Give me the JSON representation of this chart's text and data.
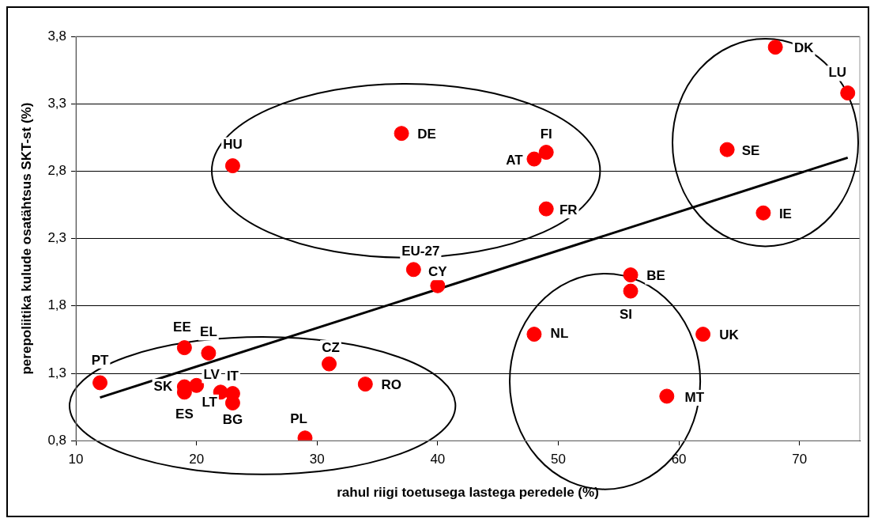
{
  "chart_data": {
    "type": "scatter",
    "xlabel": "rahul riigi toetusega lastega peredele (%)",
    "ylabel": "perepoliitika kulude osatähtsus SKT-st (%)",
    "series": [
      {
        "color": "#ff0000",
        "marker": "circle",
        "x": [
          12,
          19,
          21,
          19,
          19,
          20,
          22,
          23,
          23,
          23,
          29,
          31,
          34,
          37,
          49,
          48,
          49,
          38,
          40,
          56,
          56,
          48,
          62,
          59,
          68,
          74,
          64,
          67
        ],
        "values": [
          1.23,
          1.49,
          1.45,
          1.2,
          1.16,
          1.21,
          1.16,
          1.15,
          1.08,
          2.84,
          0.82,
          1.37,
          1.22,
          3.08,
          2.94,
          2.89,
          2.52,
          2.07,
          1.95,
          2.03,
          1.91,
          1.59,
          1.59,
          1.13,
          3.72,
          3.38,
          2.96,
          2.49
        ]
      },
      {
        "type": "line",
        "color": "#000000",
        "marker": "none",
        "x": [
          12,
          74
        ],
        "values": [
          1.12,
          2.9
        ]
      }
    ],
    "xlim": [
      10,
      75
    ],
    "ylim": [
      0.8,
      3.8
    ],
    "xticks": [
      10,
      20,
      30,
      40,
      50,
      60,
      70
    ],
    "yticks": [
      {
        "value": 0.8,
        "label": "0,8"
      },
      {
        "value": 1.3,
        "label": "1,3"
      },
      {
        "value": 1.8,
        "label": "1,8"
      },
      {
        "value": 2.3,
        "label": "2,3"
      },
      {
        "value": 2.8,
        "label": "2,8"
      },
      {
        "value": 3.3,
        "label": "3,3"
      },
      {
        "value": 3.8,
        "label": "3,8"
      }
    ],
    "grid": "y",
    "legend": false,
    "annotations": [
      {
        "text": "PT",
        "x": 12,
        "y": 1.23
      },
      {
        "text": "EE",
        "x": 19,
        "y": 1.49
      },
      {
        "text": "EL",
        "x": 21,
        "y": 1.45
      },
      {
        "text": "SK",
        "x": 19,
        "y": 1.2
      },
      {
        "text": "ES",
        "x": 19,
        "y": 1.16
      },
      {
        "text": "LV",
        "x": 20,
        "y": 1.21
      },
      {
        "text": "LT",
        "x": 22,
        "y": 1.16
      },
      {
        "text": "IT",
        "x": 23,
        "y": 1.15
      },
      {
        "text": "BG",
        "x": 23,
        "y": 1.08
      },
      {
        "text": "HU",
        "x": 23,
        "y": 2.84
      },
      {
        "text": "PL",
        "x": 29,
        "y": 0.82
      },
      {
        "text": "CZ",
        "x": 31,
        "y": 1.37
      },
      {
        "text": "RO",
        "x": 34,
        "y": 1.22
      },
      {
        "text": "DE",
        "x": 37,
        "y": 3.08
      },
      {
        "text": "FI",
        "x": 49,
        "y": 2.94
      },
      {
        "text": "AT",
        "x": 48,
        "y": 2.89
      },
      {
        "text": "FR",
        "x": 49,
        "y": 2.52
      },
      {
        "text": "EU-27",
        "x": 38,
        "y": 2.07
      },
      {
        "text": "CY",
        "x": 40,
        "y": 1.95
      },
      {
        "text": "BE",
        "x": 56,
        "y": 2.03
      },
      {
        "text": "SI",
        "x": 56,
        "y": 1.91
      },
      {
        "text": "NL",
        "x": 48,
        "y": 1.59
      },
      {
        "text": "UK",
        "x": 62,
        "y": 1.59
      },
      {
        "text": "MT",
        "x": 59,
        "y": 1.13
      },
      {
        "text": "DK",
        "x": 68,
        "y": 3.72
      },
      {
        "text": "LU",
        "x": 74,
        "y": 3.38
      },
      {
        "text": "SE",
        "x": 64,
        "y": 2.96
      },
      {
        "text": "IE",
        "x": 67,
        "y": 2.49
      }
    ]
  }
}
